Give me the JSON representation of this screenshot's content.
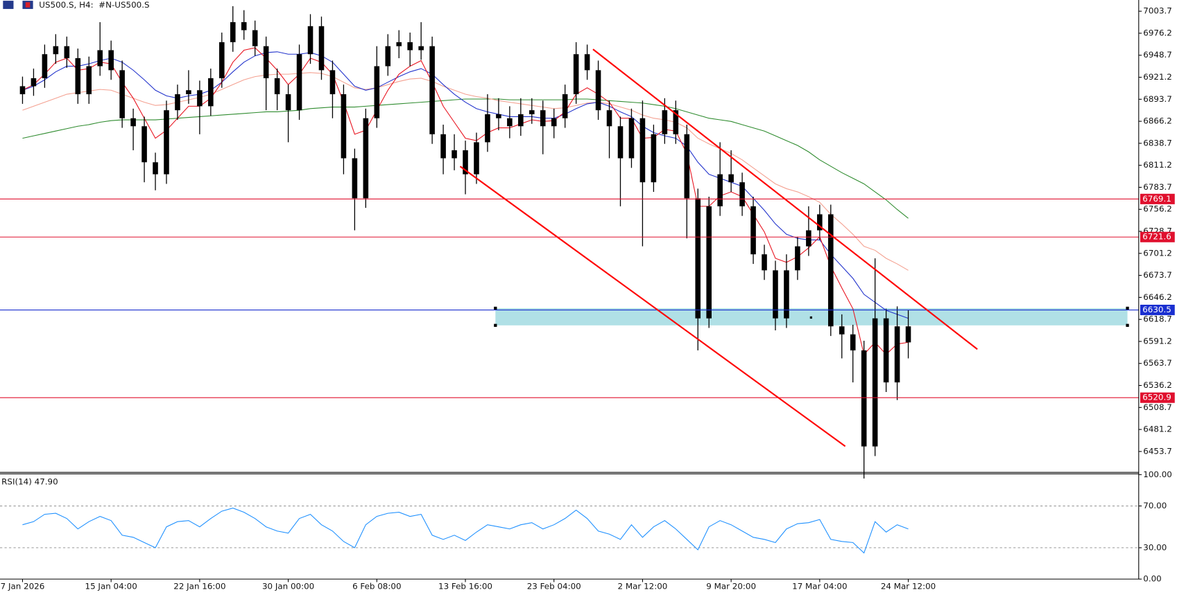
{
  "chart_data": [
    {
      "type": "candlestick",
      "title": "US500.S, H4:  #N-US500.S",
      "categories": [
        "7 Jan 2026",
        null,
        null,
        null,
        null,
        null,
        null,
        null,
        "15 Jan 04:00",
        null,
        null,
        null,
        null,
        null,
        null,
        null,
        "22 Jan 16:00",
        null,
        null,
        null,
        null,
        null,
        null,
        null,
        "30 Jan 00:00",
        null,
        null,
        null,
        null,
        null,
        null,
        null,
        "6 Feb 08:00",
        null,
        null,
        null,
        null,
        null,
        null,
        null,
        "13 Feb 16:00",
        null,
        null,
        null,
        null,
        null,
        null,
        null,
        "23 Feb 04:00",
        null,
        null,
        null,
        null,
        null,
        null,
        null,
        "2 Mar 12:00",
        null,
        null,
        null,
        null,
        null,
        null,
        null,
        "9 Mar 20:00",
        null,
        null,
        null,
        null,
        null,
        null,
        null,
        "17 Mar 04:00",
        null,
        null,
        null,
        null,
        null,
        null,
        null,
        "24 Mar 12:00"
      ],
      "open": [
        6900,
        6910,
        6920,
        6950,
        6960,
        6945,
        6900,
        6935,
        6955,
        6930,
        6870,
        6860,
        6815,
        6800,
        6880,
        6900,
        6905,
        6885,
        6920,
        6965,
        6990,
        6980,
        6960,
        6920,
        6900,
        6880,
        6950,
        6985,
        6930,
        6900,
        6820,
        6770,
        6870,
        6935,
        6960,
        6965,
        6955,
        6960,
        6850,
        6820,
        6830,
        6800,
        6840,
        6875,
        6870,
        6860,
        6875,
        6880,
        6860,
        6870,
        6900,
        6950,
        6930,
        6880,
        6860,
        6820,
        6870,
        6790,
        6850,
        6880,
        6850,
        6770,
        6620,
        6760,
        6800,
        6790,
        6760,
        6700,
        6680,
        6620,
        6680,
        6710,
        6730,
        6750,
        6610,
        6600,
        6580,
        6460,
        6620,
        6540,
        6610
      ],
      "high": [
        6922,
        6932,
        6962,
        6975,
        6972,
        6957,
        6947,
        6990,
        6967,
        6942,
        6882,
        6872,
        6827,
        6892,
        6912,
        6930,
        6917,
        6932,
        6977,
        7010,
        7005,
        6992,
        6972,
        6932,
        6912,
        6962,
        7000,
        6997,
        6942,
        6912,
        6832,
        6882,
        6960,
        6975,
        6980,
        6977,
        6990,
        6972,
        6862,
        6850,
        6842,
        6852,
        6900,
        6895,
        6885,
        6895,
        6895,
        6892,
        6882,
        6912,
        6965,
        6962,
        6942,
        6892,
        6872,
        6882,
        6892,
        6862,
        6895,
        6892,
        6862,
        6782,
        6772,
        6840,
        6830,
        6802,
        6772,
        6712,
        6692,
        6700,
        6722,
        6760,
        6762,
        6762,
        6625,
        6612,
        6592,
        6695,
        6632,
        6635,
        6630
      ],
      "low": [
        6888,
        6898,
        6908,
        6938,
        6933,
        6888,
        6888,
        6923,
        6918,
        6858,
        6830,
        6790,
        6780,
        6788,
        6868,
        6888,
        6850,
        6873,
        6908,
        6953,
        6968,
        6948,
        6880,
        6880,
        6840,
        6868,
        6938,
        6918,
        6870,
        6800,
        6730,
        6758,
        6858,
        6923,
        6945,
        6935,
        6943,
        6838,
        6800,
        6805,
        6775,
        6788,
        6828,
        6855,
        6845,
        6848,
        6863,
        6825,
        6845,
        6858,
        6888,
        6918,
        6868,
        6820,
        6760,
        6808,
        6710,
        6778,
        6838,
        6838,
        6720,
        6580,
        6608,
        6748,
        6778,
        6748,
        6688,
        6668,
        6605,
        6608,
        6668,
        6698,
        6718,
        6598,
        6570,
        6540,
        6420,
        6448,
        6528,
        6518,
        6570
      ],
      "close": [
        6910,
        6920,
        6950,
        6960,
        6945,
        6900,
        6935,
        6955,
        6930,
        6870,
        6860,
        6815,
        6800,
        6880,
        6900,
        6905,
        6885,
        6920,
        6965,
        6990,
        6980,
        6960,
        6920,
        6900,
        6880,
        6950,
        6985,
        6930,
        6900,
        6820,
        6770,
        6870,
        6935,
        6960,
        6965,
        6955,
        6960,
        6850,
        6820,
        6830,
        6800,
        6840,
        6875,
        6870,
        6860,
        6875,
        6880,
        6860,
        6870,
        6900,
        6950,
        6930,
        6880,
        6860,
        6820,
        6870,
        6790,
        6850,
        6880,
        6850,
        6770,
        6620,
        6760,
        6800,
        6790,
        6760,
        6700,
        6680,
        6620,
        6680,
        6710,
        6730,
        6750,
        6610,
        6600,
        6580,
        6460,
        6620,
        6540,
        6610,
        6590
      ],
      "color": "#000000",
      "series": [
        {
          "color": "#2e8b2e",
          "values": [
            6845,
            6848,
            6851,
            6854,
            6857,
            6860,
            6862,
            6865,
            6867,
            6868,
            6868,
            6868,
            6868,
            6869,
            6870,
            6871,
            6872,
            6873,
            6874,
            6875,
            6876,
            6877,
            6878,
            6878,
            6879,
            6880,
            6882,
            6883,
            6884,
            6884,
            6884,
            6885,
            6886,
            6887,
            6888,
            6889,
            6890,
            6891,
            6892,
            6893,
            6894,
            6894,
            6894,
            6894,
            6893,
            6893,
            6893,
            6893,
            6893,
            6893,
            6894,
            6894,
            6893,
            6892,
            6891,
            6890,
            6889,
            6887,
            6885,
            6882,
            6878,
            6874,
            6870,
            6868,
            6866,
            6862,
            6858,
            6854,
            6848,
            6842,
            6836,
            6828,
            6818,
            6810,
            6802,
            6795,
            6788,
            6778,
            6768,
            6756,
            6745
          ]
        },
        {
          "color": "#f4a090",
          "values": [
            6880,
            6885,
            6890,
            6895,
            6900,
            6902,
            6904,
            6906,
            6905,
            6900,
            6895,
            6890,
            6886,
            6887,
            6890,
            6893,
            6896,
            6900,
            6906,
            6912,
            6918,
            6922,
            6924,
            6925,
            6925,
            6926,
            6927,
            6926,
            6922,
            6915,
            6908,
            6906,
            6908,
            6912,
            6916,
            6919,
            6920,
            6916,
            6910,
            6905,
            6900,
            6897,
            6895,
            6892,
            6890,
            6888,
            6886,
            6884,
            6882,
            6883,
            6886,
            6889,
            6890,
            6888,
            6884,
            6880,
            6874,
            6870,
            6868,
            6865,
            6858,
            6845,
            6838,
            6832,
            6826,
            6818,
            6808,
            6798,
            6788,
            6782,
            6778,
            6772,
            6765,
            6750,
            6738,
            6725,
            6710,
            6705,
            6695,
            6688,
            6680
          ]
        },
        {
          "color": "#2233cc",
          "values": [
            6905,
            6910,
            6918,
            6928,
            6935,
            6935,
            6938,
            6942,
            6945,
            6940,
            6930,
            6918,
            6905,
            6898,
            6895,
            6898,
            6900,
            6905,
            6915,
            6928,
            6940,
            6948,
            6952,
            6953,
            6950,
            6950,
            6952,
            6948,
            6940,
            6925,
            6910,
            6905,
            6908,
            6915,
            6922,
            6928,
            6932,
            6925,
            6912,
            6900,
            6890,
            6882,
            6878,
            6875,
            6872,
            6872,
            6872,
            6870,
            6870,
            6875,
            6882,
            6888,
            6890,
            6885,
            6878,
            6872,
            6860,
            6852,
            6848,
            6845,
            6835,
            6815,
            6800,
            6795,
            6790,
            6785,
            6770,
            6755,
            6738,
            6725,
            6720,
            6718,
            6718,
            6700,
            6685,
            6670,
            6650,
            6640,
            6630,
            6625,
            6620
          ]
        },
        {
          "color": "#e8121e",
          "values": [
            6905,
            6912,
            6925,
            6940,
            6945,
            6930,
            6932,
            6940,
            6938,
            6915,
            6895,
            6870,
            6845,
            6855,
            6870,
            6885,
            6885,
            6895,
            6915,
            6940,
            6955,
            6958,
            6945,
            6930,
            6912,
            6925,
            6945,
            6940,
            6925,
            6890,
            6850,
            6855,
            6880,
            6905,
            6925,
            6935,
            6942,
            6915,
            6885,
            6865,
            6845,
            6842,
            6852,
            6858,
            6858,
            6863,
            6868,
            6866,
            6867,
            6878,
            6900,
            6908,
            6900,
            6890,
            6870,
            6870,
            6845,
            6846,
            6856,
            6854,
            6826,
            6760,
            6760,
            6773,
            6778,
            6772,
            6750,
            6728,
            6695,
            6690,
            6697,
            6708,
            6722,
            6685,
            6658,
            6632,
            6575,
            6590,
            6575,
            6588,
            6590
          ]
        }
      ],
      "levels": [
        {
          "value": 6769.1,
          "color": "#e0102e"
        },
        {
          "value": 6721.6,
          "color": "#e0102e"
        },
        {
          "value": 6630.5,
          "color": "#1a2fd0"
        },
        {
          "value": 6520.9,
          "color": "#e0102e"
        }
      ],
      "ylim": [
        6427.6,
        7017.7
      ],
      "yticks": [
        7003.7,
        6976.2,
        6948.7,
        6921.2,
        6893.7,
        6866.2,
        6838.7,
        6811.2,
        6783.7,
        6756.2,
        6728.7,
        6701.2,
        6673.7,
        6646.2,
        6618.7,
        6591.2,
        6563.7,
        6536.2,
        6508.7,
        6481.2,
        6453.7
      ],
      "grid": false
    },
    {
      "type": "line",
      "title": "RSI(14) 47.90",
      "series": [
        {
          "color": "#1e90ff",
          "values": [
            52,
            55,
            62,
            63,
            58,
            48,
            55,
            60,
            56,
            42,
            40,
            35,
            30,
            50,
            55,
            56,
            50,
            58,
            65,
            68,
            64,
            58,
            50,
            46,
            44,
            58,
            62,
            52,
            46,
            36,
            30,
            52,
            60,
            63,
            64,
            60,
            62,
            42,
            38,
            42,
            37,
            45,
            52,
            50,
            48,
            52,
            54,
            48,
            52,
            58,
            66,
            58,
            46,
            43,
            38,
            52,
            40,
            50,
            56,
            48,
            38,
            28,
            50,
            56,
            52,
            46,
            40,
            38,
            35,
            48,
            53,
            54,
            57,
            38,
            36,
            35,
            25,
            55,
            45,
            52,
            48
          ]
        }
      ],
      "ylim": [
        0,
        100
      ],
      "yticks": [
        {
          "value": 100,
          "label": "100.00"
        },
        {
          "value": 70,
          "label": "70.00"
        },
        {
          "value": 30,
          "label": "30.00"
        },
        {
          "value": 0,
          "label": "0.00"
        }
      ],
      "grid": true
    }
  ]
}
